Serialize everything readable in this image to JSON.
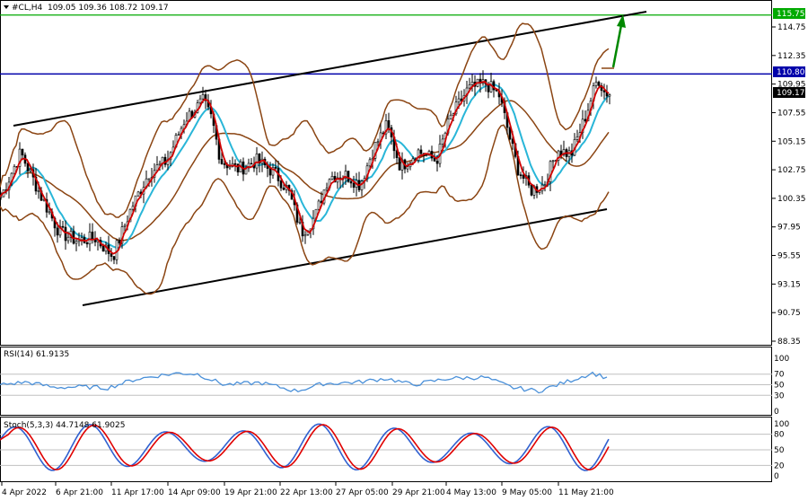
{
  "colors": {
    "candle": "#000000",
    "bollinger": "#8B4513",
    "ma_fast": "#d00000",
    "ma_slow": "#29b6d8",
    "channel": "#000000",
    "resistance_green": "#00aa00",
    "resistance_blue": "#0000aa",
    "arrow": "#008800",
    "rsi_line": "#4a90d9",
    "stoch_main": "#3060d0",
    "stoch_signal": "#e00000",
    "level_line": "#c0c0c0"
  },
  "header": {
    "symbol_label": "#CL,H4",
    "ohlc_label": "109.05 109.36 108.72 109.17"
  },
  "price_axis": {
    "ticks": [
      "114.75",
      "112.35",
      "109.95",
      "107.55",
      "105.15",
      "102.75",
      "100.35",
      "97.95",
      "95.55",
      "93.15",
      "90.75",
      "88.35"
    ],
    "ylim": [
      88.35,
      116.3
    ]
  },
  "price_boxes": {
    "green_level": "115.75",
    "blue_level": "110.80",
    "current_price": "109.17"
  },
  "time_axis": {
    "labels": [
      "4 Apr 2022",
      "6 Apr 21:00",
      "11 Apr 17:00",
      "14 Apr 09:00",
      "19 Apr 21:00",
      "22 Apr 13:00",
      "27 Apr 05:00",
      "29 Apr 21:00",
      "4 May 13:00",
      "9 May 05:00",
      "11 May 21:00"
    ]
  },
  "rsi_panel": {
    "label": "RSI(14) 61.9135",
    "ticks": [
      "100",
      "70",
      "50",
      "30",
      "0"
    ],
    "levels": [
      70,
      50,
      30
    ]
  },
  "stoch_panel": {
    "label": "Stoch(5,3,3) 44.7148 61.9025",
    "ticks": [
      "100",
      "80",
      "50",
      "20",
      "0"
    ],
    "levels": [
      80,
      50,
      20
    ]
  },
  "chart_data": {
    "type": "line",
    "series_description": "H4 candlesticks with Bollinger Bands and two moving averages",
    "anchors": [
      {
        "x": 0,
        "close": 100.5
      },
      {
        "x": 22,
        "close": 104.2
      },
      {
        "x": 45,
        "close": 100.5
      },
      {
        "x": 65,
        "close": 97.5
      },
      {
        "x": 85,
        "close": 96.8
      },
      {
        "x": 105,
        "close": 97.0
      },
      {
        "x": 125,
        "close": 95.5
      },
      {
        "x": 145,
        "close": 99.5
      },
      {
        "x": 165,
        "close": 102.5
      },
      {
        "x": 185,
        "close": 103.5
      },
      {
        "x": 205,
        "close": 107.0
      },
      {
        "x": 225,
        "close": 108.5
      },
      {
        "x": 235,
        "close": 107.0
      },
      {
        "x": 245,
        "close": 103.5
      },
      {
        "x": 265,
        "close": 102.8
      },
      {
        "x": 285,
        "close": 103.5
      },
      {
        "x": 305,
        "close": 102.5
      },
      {
        "x": 320,
        "close": 101.0
      },
      {
        "x": 335,
        "close": 97.5
      },
      {
        "x": 350,
        "close": 98.8
      },
      {
        "x": 365,
        "close": 102.2
      },
      {
        "x": 385,
        "close": 102.3
      },
      {
        "x": 400,
        "close": 101.5
      },
      {
        "x": 415,
        "close": 104.5
      },
      {
        "x": 430,
        "close": 106.5
      },
      {
        "x": 445,
        "close": 103.0
      },
      {
        "x": 465,
        "close": 104.3
      },
      {
        "x": 485,
        "close": 103.5
      },
      {
        "x": 500,
        "close": 107.0
      },
      {
        "x": 520,
        "close": 109.5
      },
      {
        "x": 540,
        "close": 110.0
      },
      {
        "x": 555,
        "close": 109.0
      },
      {
        "x": 565,
        "close": 106.0
      },
      {
        "x": 575,
        "close": 103.0
      },
      {
        "x": 590,
        "close": 101.0
      },
      {
        "x": 605,
        "close": 101.5
      },
      {
        "x": 620,
        "close": 104.5
      },
      {
        "x": 635,
        "close": 104.0
      },
      {
        "x": 650,
        "close": 107.0
      },
      {
        "x": 665,
        "close": 110.5
      },
      {
        "x": 672,
        "close": 109.3
      },
      {
        "x": 678,
        "close": 109.17
      }
    ],
    "channel_upper": [
      [
        0,
        106.0
      ],
      [
        720,
        115.9
      ]
    ],
    "channel_lower": [
      [
        0,
        92.5
      ],
      [
        680,
        100.0
      ]
    ],
    "rsi": [
      {
        "x": 0,
        "v": 50
      },
      {
        "x": 30,
        "v": 55
      },
      {
        "x": 60,
        "v": 45
      },
      {
        "x": 90,
        "v": 46
      },
      {
        "x": 120,
        "v": 44
      },
      {
        "x": 150,
        "v": 60
      },
      {
        "x": 180,
        "v": 68
      },
      {
        "x": 200,
        "v": 72
      },
      {
        "x": 220,
        "v": 70
      },
      {
        "x": 250,
        "v": 50
      },
      {
        "x": 290,
        "v": 54
      },
      {
        "x": 330,
        "v": 38
      },
      {
        "x": 360,
        "v": 52
      },
      {
        "x": 400,
        "v": 55
      },
      {
        "x": 430,
        "v": 62
      },
      {
        "x": 460,
        "v": 50
      },
      {
        "x": 500,
        "v": 62
      },
      {
        "x": 540,
        "v": 64
      },
      {
        "x": 570,
        "v": 45
      },
      {
        "x": 600,
        "v": 38
      },
      {
        "x": 630,
        "v": 55
      },
      {
        "x": 660,
        "v": 72
      },
      {
        "x": 678,
        "v": 62
      }
    ],
    "stoch_main_amp": "oscillating 10-100",
    "stoch_signal_lag": 3
  }
}
